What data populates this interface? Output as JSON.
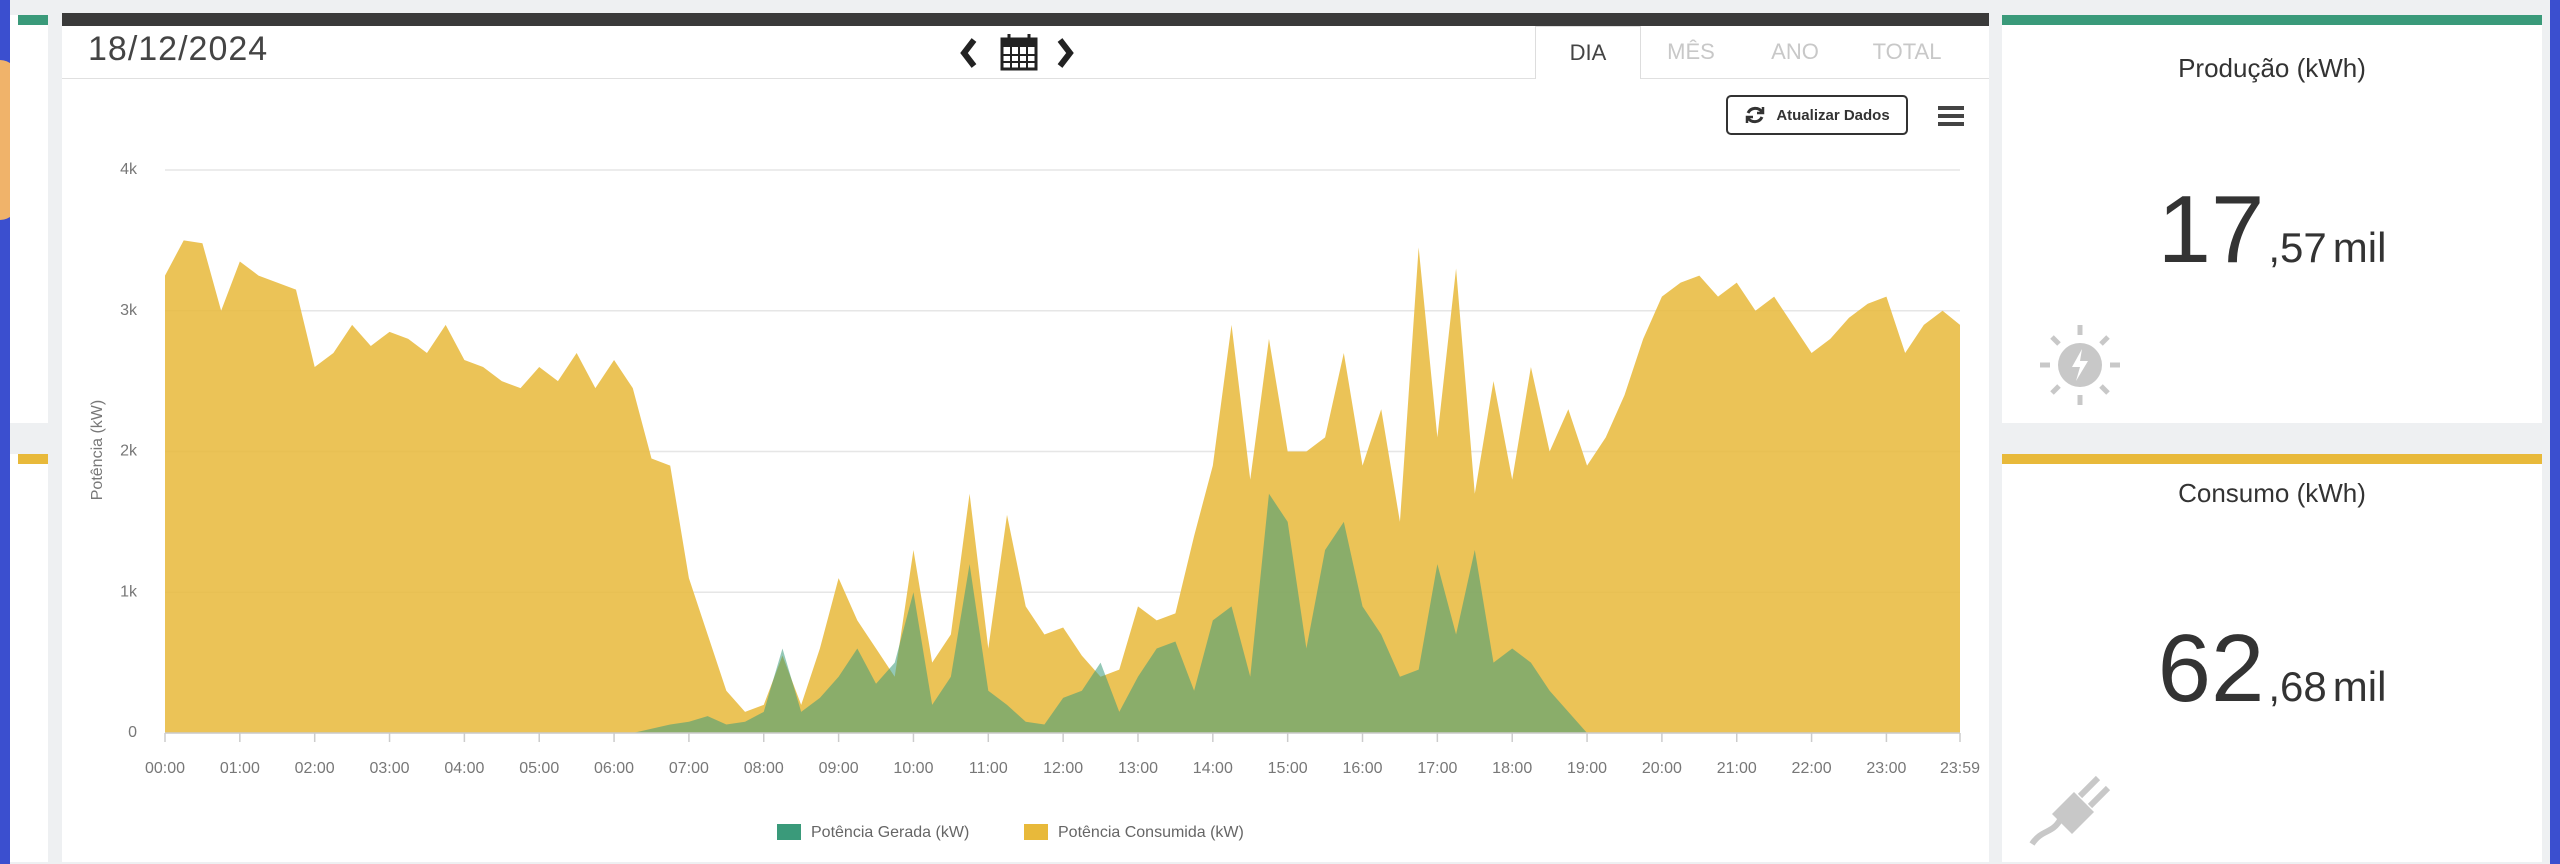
{
  "header": {
    "date": "18/12/2024",
    "tabs": [
      "DIA",
      "MÊS",
      "ANO",
      "TOTAL"
    ],
    "refresh_button": "Atualizar Dados"
  },
  "chart_data": {
    "type": "area",
    "y_label": "Potência (kW)",
    "x": [
      0,
      0.25,
      0.5,
      0.75,
      1,
      1.25,
      1.5,
      1.75,
      2,
      2.25,
      2.5,
      2.75,
      3,
      3.25,
      3.5,
      3.75,
      4,
      4.25,
      4.5,
      4.75,
      5,
      5.25,
      5.5,
      5.75,
      6,
      6.25,
      6.5,
      6.75,
      7,
      7.25,
      7.5,
      7.75,
      8,
      8.25,
      8.5,
      8.75,
      9,
      9.25,
      9.5,
      9.75,
      10,
      10.25,
      10.5,
      10.75,
      11,
      11.25,
      11.5,
      11.75,
      12,
      12.25,
      12.5,
      12.75,
      13,
      13.25,
      13.5,
      13.75,
      14,
      14.25,
      14.5,
      14.75,
      15,
      15.25,
      15.5,
      15.75,
      16,
      16.25,
      16.5,
      16.75,
      17,
      17.25,
      17.5,
      17.75,
      18,
      18.25,
      18.5,
      18.75,
      19,
      19.25,
      19.5,
      19.75,
      20,
      20.25,
      20.5,
      20.75,
      21,
      21.25,
      21.5,
      21.75,
      22,
      22.25,
      22.5,
      22.75,
      23,
      23.25,
      23.5,
      23.75,
      23.983
    ],
    "xlim": [
      0,
      23.983
    ],
    "xticks": [
      {
        "value": 0,
        "label": "00:00"
      },
      {
        "value": 1,
        "label": "01:00"
      },
      {
        "value": 2,
        "label": "02:00"
      },
      {
        "value": 3,
        "label": "03:00"
      },
      {
        "value": 4,
        "label": "04:00"
      },
      {
        "value": 5,
        "label": "05:00"
      },
      {
        "value": 6,
        "label": "06:00"
      },
      {
        "value": 7,
        "label": "07:00"
      },
      {
        "value": 8,
        "label": "08:00"
      },
      {
        "value": 9,
        "label": "09:00"
      },
      {
        "value": 10,
        "label": "10:00"
      },
      {
        "value": 11,
        "label": "11:00"
      },
      {
        "value": 12,
        "label": "12:00"
      },
      {
        "value": 13,
        "label": "13:00"
      },
      {
        "value": 14,
        "label": "14:00"
      },
      {
        "value": 15,
        "label": "15:00"
      },
      {
        "value": 16,
        "label": "16:00"
      },
      {
        "value": 17,
        "label": "17:00"
      },
      {
        "value": 18,
        "label": "18:00"
      },
      {
        "value": 19,
        "label": "19:00"
      },
      {
        "value": 20,
        "label": "20:00"
      },
      {
        "value": 21,
        "label": "21:00"
      },
      {
        "value": 22,
        "label": "22:00"
      },
      {
        "value": 23,
        "label": "23:00"
      },
      {
        "value": 23.983,
        "label": "23:59"
      }
    ],
    "ylim": [
      0,
      4000
    ],
    "yticks": [
      0,
      {
        "value": 1000,
        "label": "1k"
      },
      {
        "value": 2000,
        "label": "2k"
      },
      {
        "value": 3000,
        "label": "3k"
      },
      {
        "value": 4000,
        "label": "4k"
      }
    ],
    "grid": true,
    "series": [
      {
        "name": "Potência Gerada (kW)",
        "color": "#3a9a7a",
        "values": [
          0,
          0,
          0,
          0,
          0,
          0,
          0,
          0,
          0,
          0,
          0,
          0,
          0,
          0,
          0,
          0,
          0,
          0,
          0,
          0,
          0,
          0,
          0,
          0,
          0,
          0,
          30,
          60,
          80,
          120,
          60,
          80,
          150,
          600,
          150,
          250,
          400,
          600,
          350,
          500,
          1000,
          200,
          400,
          1200,
          300,
          200,
          80,
          60,
          250,
          300,
          500,
          150,
          400,
          600,
          650,
          300,
          800,
          900,
          400,
          1700,
          1500,
          600,
          1300,
          1500,
          900,
          700,
          400,
          450,
          1200,
          700,
          1300,
          500,
          600,
          500,
          300,
          150,
          0,
          0,
          0,
          0,
          0,
          0,
          0,
          0,
          0,
          0,
          0,
          0,
          0,
          0,
          0,
          0,
          0,
          0,
          0,
          0,
          0
        ]
      },
      {
        "name": "Potência Consumida (kW)",
        "color": "#e8b93a",
        "values": [
          3250,
          3500,
          3480,
          3000,
          3350,
          3250,
          3200,
          3150,
          2600,
          2700,
          2900,
          2750,
          2850,
          2800,
          2700,
          2900,
          2650,
          2600,
          2500,
          2450,
          2600,
          2500,
          2700,
          2450,
          2650,
          2450,
          1950,
          1900,
          1100,
          700,
          300,
          150,
          200,
          550,
          200,
          600,
          1100,
          800,
          600,
          400,
          1300,
          500,
          700,
          1700,
          600,
          1550,
          900,
          700,
          750,
          550,
          400,
          450,
          900,
          800,
          850,
          1400,
          1900,
          2900,
          1800,
          2800,
          2000,
          2000,
          2100,
          2700,
          1900,
          2300,
          1500,
          3450,
          2100,
          3300,
          1700,
          2500,
          1800,
          2600,
          2000,
          2300,
          1900,
          2100,
          2400,
          2800,
          3100,
          3200,
          3250,
          3100,
          3200,
          3000,
          3100,
          2900,
          2700,
          2800,
          2950,
          3050,
          3100,
          2700,
          2900,
          3000,
          2900
        ]
      }
    ]
  },
  "cards": [
    {
      "title": "Produção (kWh)",
      "integer": "17",
      "fraction": ",57",
      "unit": "mil"
    },
    {
      "title": "Consumo (kWh)",
      "integer": "62",
      "fraction": ",68",
      "unit": "mil"
    }
  ]
}
